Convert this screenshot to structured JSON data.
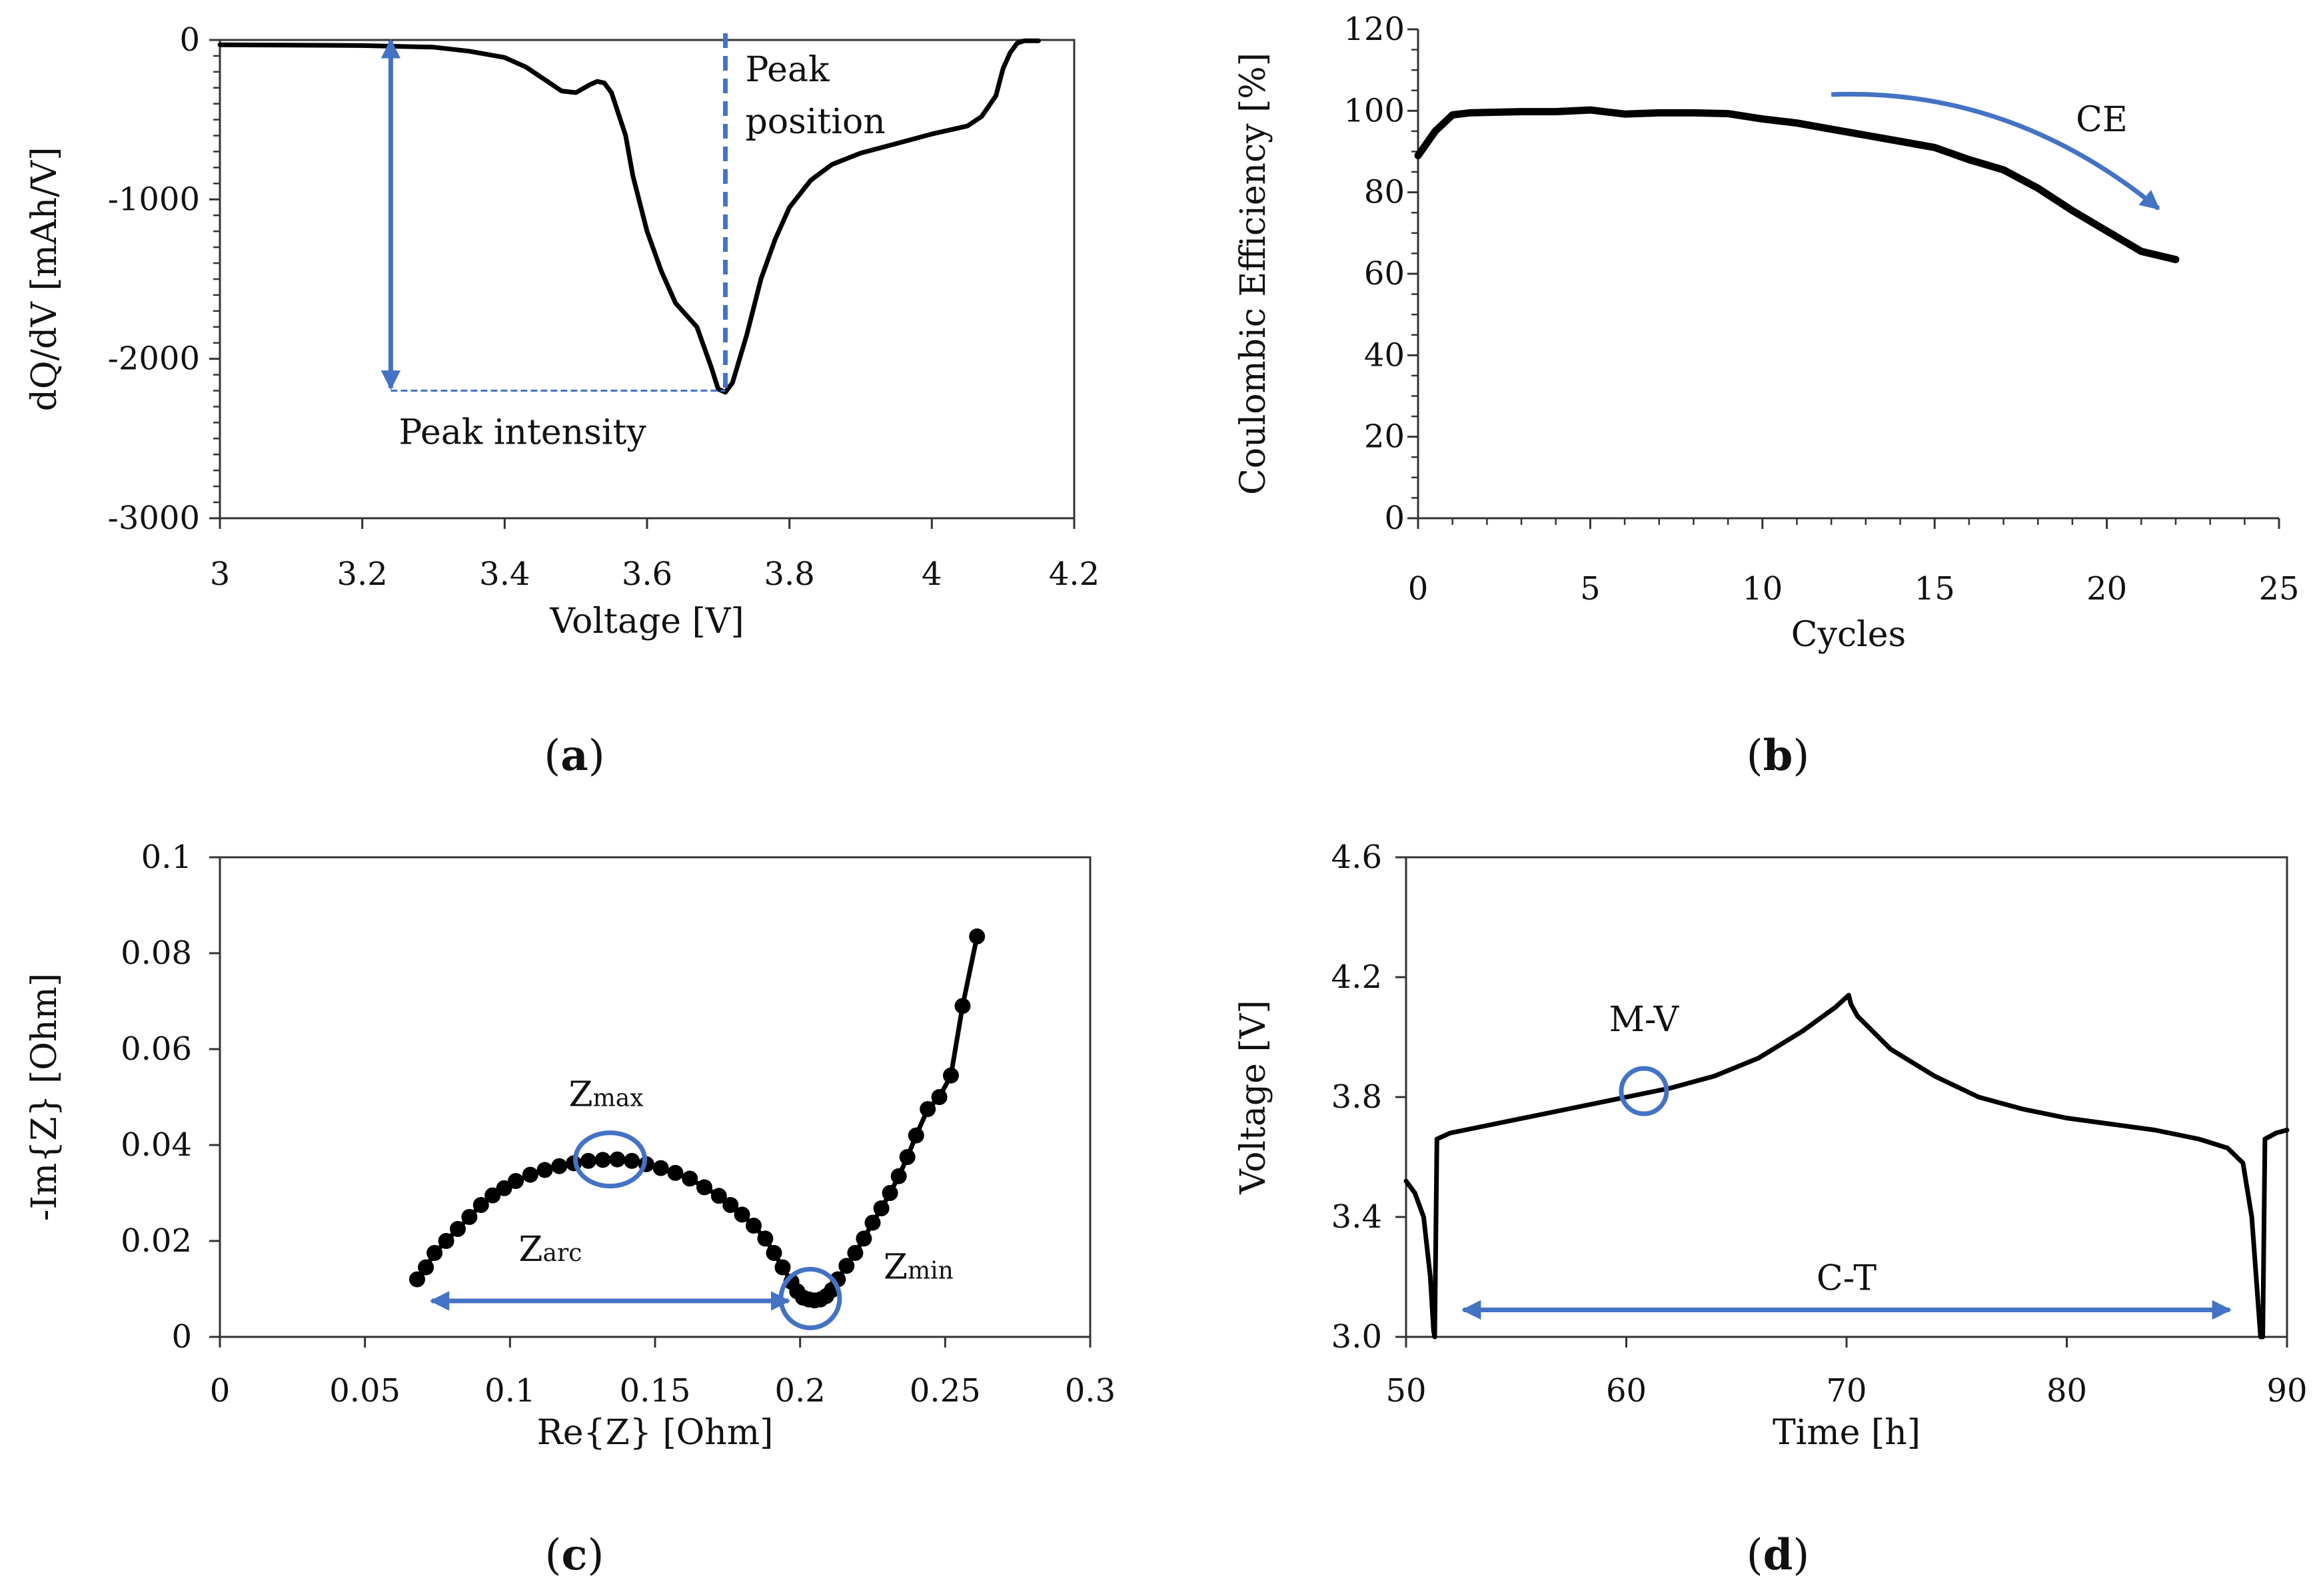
{
  "chart_data": [
    {
      "panel": "(a)",
      "panel_letter": "a",
      "type": "line",
      "xlabel": "Voltage [V]",
      "ylabel": "dQ/dV [mAh/V]",
      "xlim": [
        3,
        4.2
      ],
      "ylim": [
        -3000,
        0
      ],
      "xticks": [
        "3",
        "3.2",
        "3.4",
        "3.6",
        "3.8",
        "4",
        "4.2"
      ],
      "xtick_values": [
        3,
        3.2,
        3.4,
        3.6,
        3.8,
        4,
        4.2
      ],
      "yticks": [
        "0",
        "-1000",
        "-2000",
        "-3000"
      ],
      "ytick_values": [
        0,
        -1000,
        -2000,
        -3000
      ],
      "grid": false,
      "series": [
        {
          "color": "#000000",
          "x": [
            3.0,
            3.1,
            3.2,
            3.3,
            3.35,
            3.4,
            3.43,
            3.46,
            3.48,
            3.5,
            3.52,
            3.53,
            3.54,
            3.55,
            3.57,
            3.58,
            3.6,
            3.62,
            3.64,
            3.65,
            3.67,
            3.69,
            3.7,
            3.71,
            3.72,
            3.74,
            3.76,
            3.78,
            3.8,
            3.83,
            3.86,
            3.9,
            3.95,
            4.0,
            4.05,
            4.07,
            4.09,
            4.1,
            4.11,
            4.12,
            4.13,
            4.15
          ],
          "y": [
            -30,
            -32,
            -35,
            -45,
            -70,
            -110,
            -170,
            -260,
            -320,
            -330,
            -280,
            -260,
            -270,
            -330,
            -600,
            -850,
            -1200,
            -1450,
            -1650,
            -1700,
            -1800,
            -2050,
            -2190,
            -2210,
            -2150,
            -1850,
            -1500,
            -1250,
            -1050,
            -880,
            -780,
            -710,
            -650,
            -590,
            -540,
            -480,
            -350,
            -180,
            -80,
            -20,
            -5,
            -5
          ]
        }
      ],
      "annotations": {
        "peak_position_label": [
          "Peak",
          "position"
        ],
        "peak_intensity_label": "Peak intensity",
        "peak_x": 3.71,
        "peak_y": -2200,
        "intensity_arrow_x": 3.24
      }
    },
    {
      "panel": "(b)",
      "panel_letter": "b",
      "type": "line",
      "xlabel": "Cycles",
      "ylabel": "Coulombic Efficiency [%]",
      "xlim": [
        0,
        25
      ],
      "ylim": [
        0,
        120
      ],
      "xticks": [
        "0",
        "5",
        "10",
        "15",
        "20",
        "25"
      ],
      "xtick_values": [
        0,
        5,
        10,
        15,
        20,
        25
      ],
      "yticks": [
        "0",
        "20",
        "40",
        "60",
        "80",
        "100",
        "120"
      ],
      "ytick_values": [
        0,
        20,
        40,
        60,
        80,
        100,
        120
      ],
      "grid": false,
      "series": [
        {
          "color": "#000000",
          "x": [
            0,
            0.5,
            1,
            1.5,
            2,
            3,
            4,
            5,
            6,
            7,
            8,
            9,
            10,
            11,
            12,
            13,
            14,
            15,
            16,
            17,
            18,
            19,
            20,
            21,
            22
          ],
          "y": [
            89,
            95,
            99,
            99.5,
            99.6,
            99.8,
            99.8,
            100.2,
            99.2,
            99.5,
            99.5,
            99.3,
            98,
            97,
            95.5,
            94,
            92.5,
            91,
            88,
            85.5,
            81,
            75.5,
            70.5,
            65.5,
            63.5
          ]
        }
      ],
      "annotations": {
        "trend_label": "CE",
        "trend_arrow": {
          "x_start": 12,
          "y_start": 104,
          "x_end": 21.5,
          "y_end": 76
        }
      }
    },
    {
      "panel": "(c)",
      "panel_letter": "c",
      "type": "scatter",
      "xlabel": "Re{Z} [Ohm]",
      "ylabel": "-Im{Z} [Ohm]",
      "xlim": [
        0,
        0.3
      ],
      "ylim": [
        0,
        0.1
      ],
      "xticks": [
        "0",
        "0.05",
        "0.1",
        "0.15",
        "0.2",
        "0.25",
        "0.3"
      ],
      "xtick_values": [
        0,
        0.05,
        0.1,
        0.15,
        0.2,
        0.25,
        0.3
      ],
      "yticks": [
        "0",
        "0.02",
        "0.04",
        "0.06",
        "0.08",
        "0.1"
      ],
      "ytick_values": [
        0,
        0.02,
        0.04,
        0.06,
        0.08,
        0.1
      ],
      "grid": false,
      "series": [
        {
          "color": "#000000",
          "x": [
            0.068,
            0.071,
            0.074,
            0.078,
            0.082,
            0.086,
            0.09,
            0.094,
            0.098,
            0.102,
            0.107,
            0.112,
            0.117,
            0.122,
            0.127,
            0.132,
            0.137,
            0.142,
            0.147,
            0.152,
            0.157,
            0.162,
            0.167,
            0.172,
            0.176,
            0.18,
            0.184,
            0.188,
            0.191,
            0.194,
            0.197,
            0.199,
            0.201,
            0.203,
            0.205,
            0.207,
            0.209,
            0.211,
            0.213,
            0.216,
            0.219,
            0.222,
            0.225,
            0.228,
            0.231,
            0.234,
            0.237,
            0.24,
            0.244,
            0.248,
            0.252,
            0.256,
            0.261
          ],
          "y": [
            0.012,
            0.0145,
            0.0175,
            0.02,
            0.0225,
            0.025,
            0.0275,
            0.0295,
            0.031,
            0.0325,
            0.0338,
            0.0348,
            0.0356,
            0.0362,
            0.0367,
            0.0369,
            0.037,
            0.0367,
            0.036,
            0.0352,
            0.0342,
            0.033,
            0.0312,
            0.0294,
            0.0275,
            0.0255,
            0.0232,
            0.0205,
            0.0175,
            0.0145,
            0.0115,
            0.0095,
            0.0082,
            0.0078,
            0.0076,
            0.0078,
            0.0085,
            0.0098,
            0.012,
            0.0148,
            0.0175,
            0.0205,
            0.0238,
            0.0268,
            0.03,
            0.0335,
            0.0375,
            0.042,
            0.0475,
            0.05,
            0.0545,
            0.069,
            0.0835
          ]
        }
      ],
      "annotations": {
        "zmax_label": "Z",
        "zmax_sub": "max",
        "zmin_label": "Z",
        "zmin_sub": "min",
        "zarc_label": "Z",
        "zarc_sub": "arc",
        "zmax_point": {
          "x": 0.1345,
          "y": 0.037
        },
        "zmin_point": {
          "x": 0.2035,
          "y": 0.008
        },
        "zarc_arrow": {
          "x_start": 0.073,
          "x_end": 0.196,
          "y": 0.0075
        }
      }
    },
    {
      "panel": "(d)",
      "panel_letter": "d",
      "type": "line",
      "xlabel": "Time [h]",
      "ylabel": "Voltage [V]",
      "xlim": [
        50,
        90
      ],
      "ylim": [
        3.0,
        4.6
      ],
      "xticks": [
        "50",
        "60",
        "70",
        "80",
        "90"
      ],
      "xtick_values": [
        50,
        60,
        70,
        80,
        90
      ],
      "yticks": [
        "3.0",
        "3.4",
        "3.8",
        "4.2",
        "4.6"
      ],
      "ytick_values": [
        3.0,
        3.4,
        3.8,
        4.2,
        4.6
      ],
      "grid": false,
      "series": [
        {
          "color": "#000000",
          "x": [
            50,
            50.4,
            50.8,
            51.1,
            51.25,
            51.3,
            51.4,
            52,
            54,
            56,
            58,
            60,
            62,
            64,
            66,
            68,
            69.5,
            70.1,
            70.2,
            70.5,
            72,
            74,
            76,
            78,
            80,
            82,
            84,
            86,
            87.3,
            88,
            88.4,
            88.7,
            88.8,
            88.9,
            89.0,
            89.5,
            90
          ],
          "y": [
            3.52,
            3.48,
            3.4,
            3.2,
            3.02,
            3.0,
            3.66,
            3.68,
            3.71,
            3.74,
            3.77,
            3.8,
            3.83,
            3.87,
            3.93,
            4.02,
            4.1,
            4.14,
            4.11,
            4.07,
            3.96,
            3.87,
            3.8,
            3.76,
            3.73,
            3.71,
            3.69,
            3.66,
            3.63,
            3.58,
            3.4,
            3.1,
            3.0,
            3.0,
            3.66,
            3.68,
            3.69
          ]
        }
      ],
      "annotations": {
        "mv_label": "M-V",
        "ct_label": "C-T",
        "mv_point": {
          "x": 60.8,
          "y": 3.82
        },
        "ct_arrow": {
          "x_start": 52.6,
          "x_end": 87.4,
          "y": 3.09
        }
      }
    }
  ]
}
